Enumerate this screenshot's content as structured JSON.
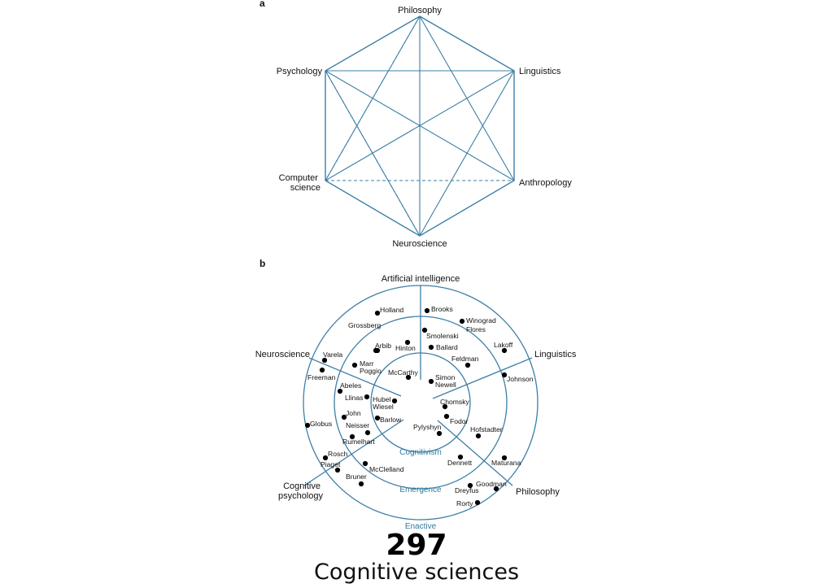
{
  "panel_a": {
    "label": "a",
    "vertices": [
      "Philosophy",
      "Linguistics",
      "Anthropology",
      "Neuroscience",
      "Computer science",
      "Psychology"
    ]
  },
  "panel_b": {
    "label": "b",
    "spokes": [
      "Artificial intelligence",
      "Linguistics",
      "Philosophy",
      "Cognitive psychology",
      "Neuroscience"
    ],
    "rings": [
      "Cognitivism",
      "Emergence",
      "Enactive"
    ],
    "names": [
      "Holland",
      "Brooks",
      "Winograd",
      "Flores",
      "Grossberg",
      "Smolenski",
      "Arbib",
      "Hinton",
      "Ballard",
      "Lakoff",
      "Feldman",
      "Varela",
      "Marr",
      "Poggio",
      "Freeman",
      "McCarthy",
      "Simon",
      "Newell",
      "Johnson",
      "Abeles",
      "Llinas",
      "Hubel",
      "Wiesel",
      "Chomsky",
      "John",
      "Barlow",
      "Fodor",
      "Globus",
      "Neisser",
      "Pylyshyn",
      "Hofstadter",
      "Rumelhart",
      "Rosch",
      "Piaget",
      "Dennett",
      "Maturana",
      "McClelland",
      "Bruner",
      "Goodman",
      "Dreyfus",
      "Rorty"
    ]
  },
  "colors": {
    "accent": "#3d7fa6",
    "ring_text": "#2f7aa0",
    "dot": "#000000"
  },
  "footer": {
    "page_number": "297",
    "caption": "Cognitive sciences"
  }
}
